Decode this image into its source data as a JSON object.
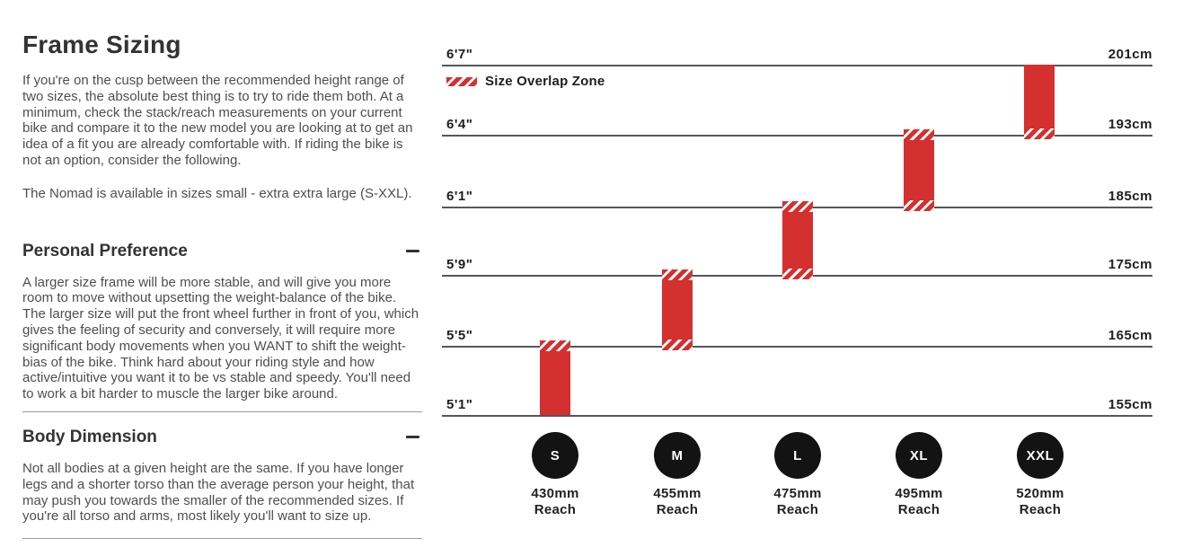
{
  "left_panel": {
    "title": "Frame Sizing",
    "intro": "If you're on the cusp between the recommended height range of two sizes, the absolute best thing is to try to ride them both. At a minimum, check the stack/reach measurements on your current bike and compare it to the new model you are looking at to get an idea of a fit you are already comfortable with. If riding the bike is not an option, consider the following.",
    "availability": "The Nomad is available in sizes small - extra extra large (S-XXL).",
    "sections": [
      {
        "heading": "Personal Preference",
        "state": "expanded",
        "body": "A larger size frame will be more stable, and will give you more room to move without upsetting the weight-balance of the bike. The larger size will put the front wheel further in front of you, which gives the feeling of security and conversely, it will require more significant body movements when you WANT to shift the weight-bias of the bike. Think hard about your riding style and how active/intuitive you want it to be vs stable and speedy. You'll need to work a bit harder to muscle the larger bike around."
      },
      {
        "heading": "Body Dimension",
        "state": "expanded",
        "body": "Not all bodies at a given height are the same. If you have longer legs and a shorter torso than the average person your height, that may push you towards the smaller of the recommended sizes. If you're all torso and arms, most likely you'll want to size up."
      }
    ]
  },
  "chart": {
    "legend_label": "Size Overlap Zone",
    "rows": [
      {
        "ft": "6'7\"",
        "cm": "201cm"
      },
      {
        "ft": "6'4\"",
        "cm": "193cm"
      },
      {
        "ft": "6'1\"",
        "cm": "185cm"
      },
      {
        "ft": "5'9\"",
        "cm": "175cm"
      },
      {
        "ft": "5'5\"",
        "cm": "165cm"
      },
      {
        "ft": "5'1\"",
        "cm": "155cm"
      }
    ],
    "sizes": [
      {
        "label": "S",
        "reach_value": "430mm",
        "reach_word": "Reach"
      },
      {
        "label": "M",
        "reach_value": "455mm",
        "reach_word": "Reach"
      },
      {
        "label": "L",
        "reach_value": "475mm",
        "reach_word": "Reach"
      },
      {
        "label": "XL",
        "reach_value": "495mm",
        "reach_word": "Reach"
      },
      {
        "label": "XXL",
        "reach_value": "520mm",
        "reach_word": "Reach"
      }
    ],
    "colors": {
      "bar_red": "#d3302f",
      "circle_black": "#131313",
      "grid_line": "#56575b",
      "heading_text": "#333333",
      "body_text": "#4e4e4e"
    }
  },
  "chart_data": {
    "type": "bar",
    "title": "Recommended rider height range per frame size",
    "legend": [
      "Size Overlap Zone"
    ],
    "y_axis": {
      "left_ticks_ft": [
        "6'7\"",
        "6'4\"",
        "6'1\"",
        "5'9\"",
        "5'5\"",
        "5'1\""
      ],
      "right_ticks_cm": [
        201,
        193,
        185,
        175,
        165,
        155
      ],
      "ylim_cm": [
        155,
        201
      ]
    },
    "series": [
      {
        "name": "S",
        "reach_mm": 430,
        "height_min_ft": "5'1\"",
        "height_max_ft": "5'5\"",
        "cm_min": 155,
        "cm_max": 165,
        "overlap_top": true,
        "overlap_bottom": false
      },
      {
        "name": "M",
        "reach_mm": 455,
        "height_min_ft": "5'5\"",
        "height_max_ft": "5'9\"",
        "cm_min": 165,
        "cm_max": 175,
        "overlap_top": true,
        "overlap_bottom": true
      },
      {
        "name": "L",
        "reach_mm": 475,
        "height_min_ft": "5'9\"",
        "height_max_ft": "6'1\"",
        "cm_min": 175,
        "cm_max": 185,
        "overlap_top": true,
        "overlap_bottom": true
      },
      {
        "name": "XL",
        "reach_mm": 495,
        "height_min_ft": "6'1\"",
        "height_max_ft": "6'4\"",
        "cm_min": 185,
        "cm_max": 193,
        "overlap_top": true,
        "overlap_bottom": true
      },
      {
        "name": "XXL",
        "reach_mm": 520,
        "height_min_ft": "6'4\"",
        "height_max_ft": "6'7\"",
        "cm_min": 193,
        "cm_max": 201,
        "overlap_top": false,
        "overlap_bottom": true
      }
    ]
  }
}
